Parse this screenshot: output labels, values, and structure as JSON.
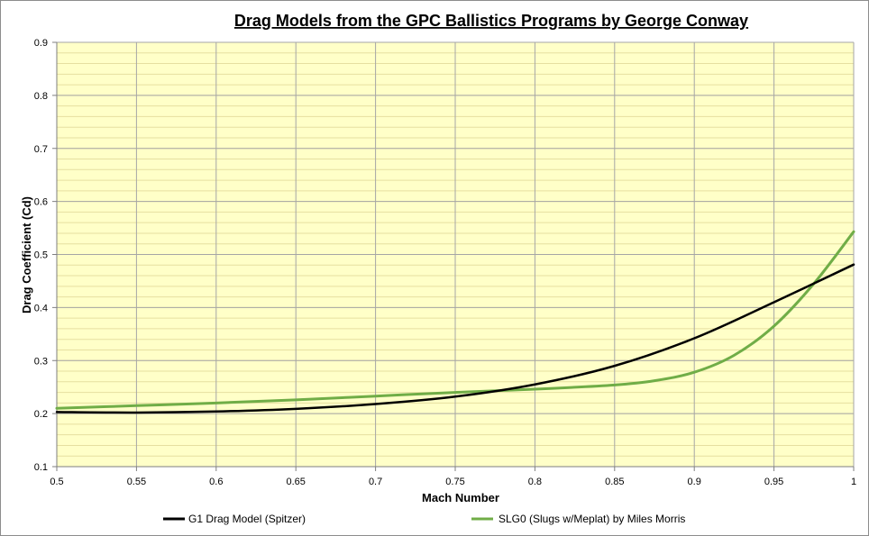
{
  "chart_data": {
    "type": "line",
    "title": "Drag Models from the GPC Ballistics Programs by George Conway",
    "xlabel": "Mach Number",
    "ylabel": "Drag Coefficient (Cd)",
    "xlim": [
      0.5,
      1.0
    ],
    "ylim": [
      0.1,
      0.9
    ],
    "xticks": [
      "0.5",
      "0.55",
      "0.6",
      "0.65",
      "0.7",
      "0.75",
      "0.8",
      "0.85",
      "0.9",
      "0.95",
      "1"
    ],
    "yticks": [
      "0.1",
      "0.2",
      "0.3",
      "0.4",
      "0.5",
      "0.6",
      "0.7",
      "0.8",
      "0.9"
    ],
    "grid": true,
    "legend_position": "bottom",
    "plot_background": "#ffffc8",
    "series": [
      {
        "name": "G1 Drag Model (Spitzer)",
        "color": "#000000",
        "x": [
          0.5,
          0.55,
          0.6,
          0.65,
          0.7,
          0.75,
          0.8,
          0.85,
          0.9,
          0.95,
          1.0
        ],
        "y": [
          0.203,
          0.202,
          0.204,
          0.209,
          0.218,
          0.232,
          0.255,
          0.29,
          0.342,
          0.41,
          0.481
        ]
      },
      {
        "name": "SLG0 (Slugs w/Meplat) by Miles Morris",
        "color": "#70ad47",
        "x": [
          0.5,
          0.55,
          0.6,
          0.65,
          0.7,
          0.75,
          0.8,
          0.85,
          0.875,
          0.9,
          0.925,
          0.95,
          0.975,
          1.0
        ],
        "y": [
          0.21,
          0.215,
          0.22,
          0.226,
          0.233,
          0.24,
          0.246,
          0.254,
          0.262,
          0.278,
          0.31,
          0.365,
          0.445,
          0.543
        ]
      }
    ]
  }
}
